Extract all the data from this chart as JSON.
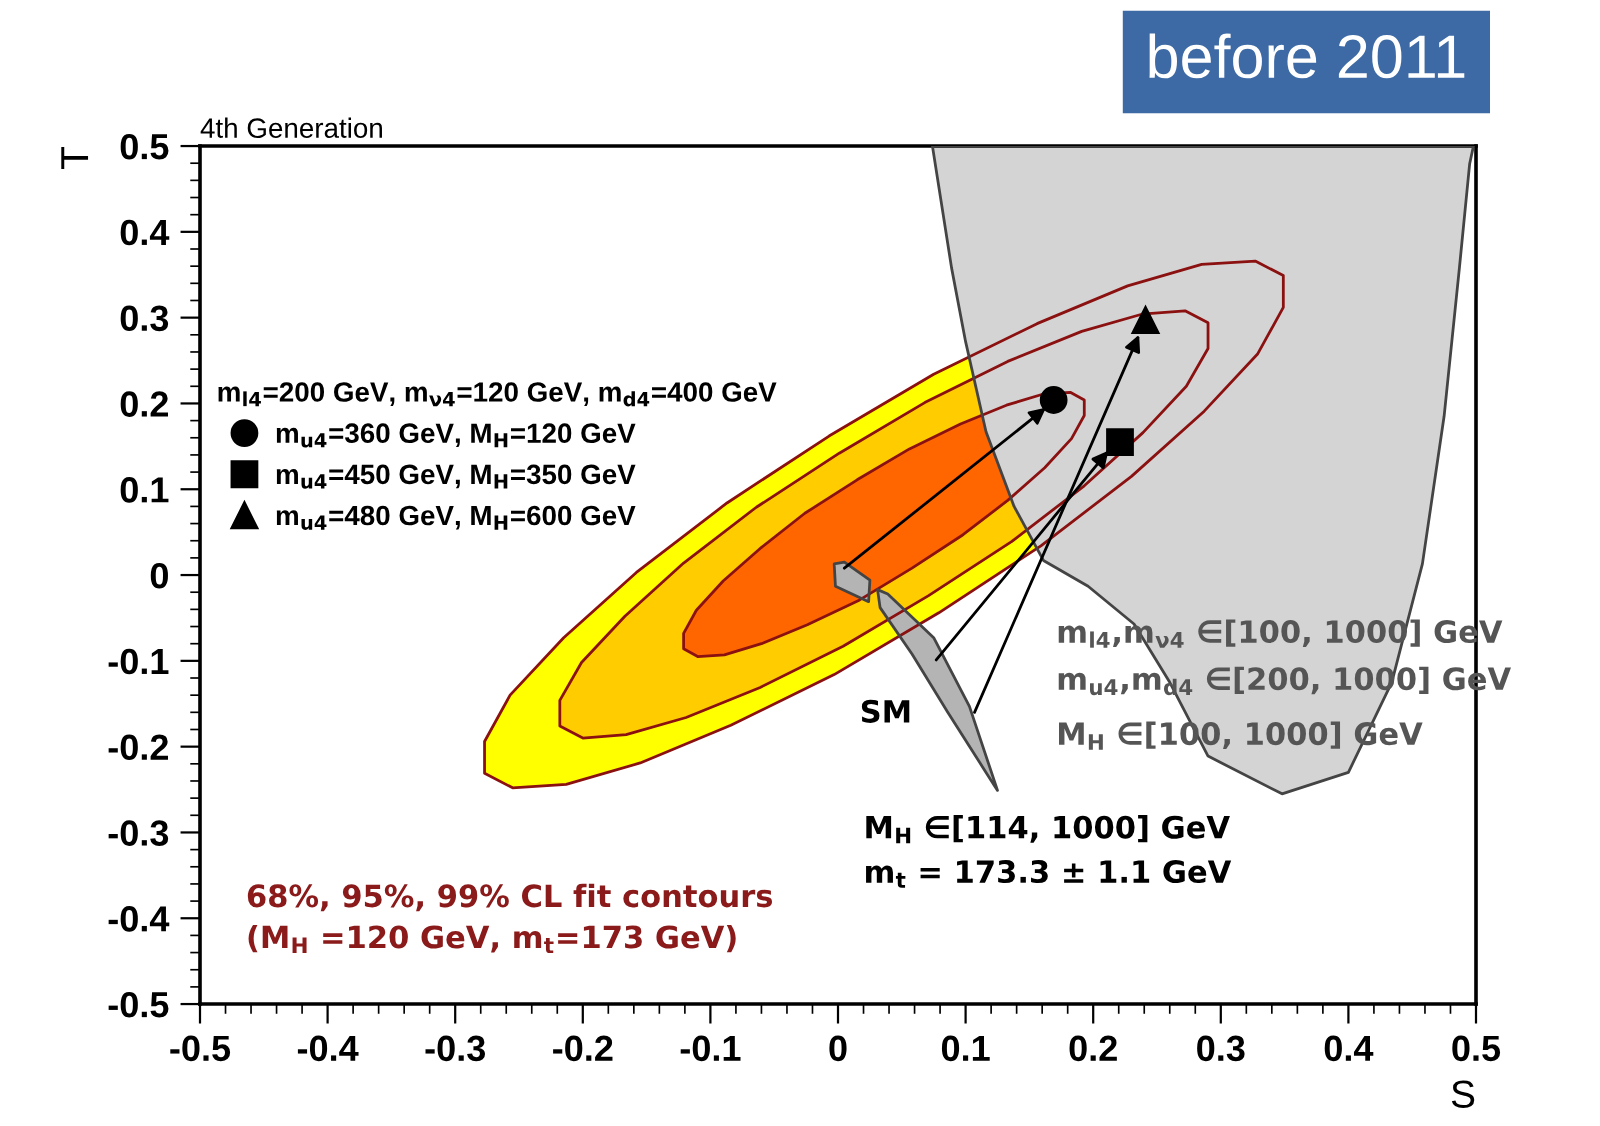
{
  "chart_data": {
    "type": "scatter",
    "title": "4th Generation",
    "xlabel": "S",
    "ylabel": "T",
    "legend_title": "m$_{l4}$=200 GeV, m$_{ν4}$=120 GeV, m$_{d4}$=400 GeV",
    "xlim": [
      -0.5,
      0.5
    ],
    "ylim": [
      -0.5,
      0.5
    ],
    "xticks": [
      -0.5,
      -0.4,
      -0.3,
      -0.2,
      -0.1,
      0,
      0.1,
      0.2,
      0.3,
      0.4,
      0.5
    ],
    "yticks": [
      -0.5,
      -0.4,
      -0.3,
      -0.2,
      -0.1,
      0,
      0.1,
      0.2,
      0.3,
      0.4,
      0.5
    ],
    "legend": "top left",
    "grid": false,
    "series": [
      {
        "type": "area",
        "color": "#ffff00",
        "x": [
          0.349,
          0.349,
          0.329,
          0.287,
          0.23,
          0.159,
          0.079,
          -0.003,
          -0.084,
          -0.155,
          -0.213,
          -0.255,
          -0.277,
          -0.277,
          -0.257,
          -0.215,
          -0.158,
          -0.087,
          -0.007,
          0.075,
          0.156,
          0.227,
          0.285,
          0.327
        ],
        "values": [
          0.349,
          0.312,
          0.258,
          0.191,
          0.115,
          0.034,
          -0.044,
          -0.116,
          -0.175,
          -0.219,
          -0.244,
          -0.248,
          -0.231,
          -0.194,
          -0.14,
          -0.073,
          0.003,
          0.084,
          0.162,
          0.234,
          0.293,
          0.337,
          0.362,
          0.366
        ]
      },
      {
        "type": "area",
        "color": "#ffcc00",
        "x": [
          0.29,
          0.29,
          0.273,
          0.239,
          0.193,
          0.136,
          0.071,
          0.004,
          -0.061,
          -0.119,
          -0.166,
          -0.2,
          -0.218,
          -0.218,
          -0.201,
          -0.167,
          -0.121,
          -0.064,
          0.001,
          0.068,
          0.133,
          0.191,
          0.238,
          0.272
        ],
        "values": [
          0.294,
          0.264,
          0.22,
          0.166,
          0.104,
          0.039,
          -0.024,
          -0.083,
          -0.131,
          -0.166,
          -0.186,
          -0.19,
          -0.176,
          -0.146,
          -0.102,
          -0.048,
          0.014,
          0.079,
          0.142,
          0.201,
          0.249,
          0.284,
          0.304,
          0.308
        ]
      },
      {
        "type": "area",
        "color": "#ff6600",
        "x": [
          0.193,
          0.193,
          0.183,
          0.162,
          0.133,
          0.098,
          0.058,
          0.017,
          -0.024,
          -0.06,
          -0.089,
          -0.11,
          -0.121,
          -0.121,
          -0.111,
          -0.09,
          -0.061,
          -0.026,
          0.015,
          0.056,
          0.096,
          0.132,
          0.161,
          0.182
        ],
        "values": [
          0.204,
          0.186,
          0.159,
          0.125,
          0.087,
          0.047,
          0.008,
          -0.029,
          -0.058,
          -0.08,
          -0.093,
          -0.095,
          -0.086,
          -0.068,
          -0.041,
          -0.007,
          0.031,
          0.072,
          0.111,
          0.147,
          0.176,
          0.198,
          0.211,
          0.213
        ]
      },
      {
        "type": "area",
        "color": "#d4d4d4",
        "x": [
          0.074,
          0.089,
          0.1,
          0.116,
          0.138,
          0.161,
          0.196,
          0.232,
          0.26,
          0.29,
          0.348,
          0.4,
          0.434,
          0.458,
          0.475,
          0.487,
          0.495,
          0.498
        ],
        "values": [
          0.5,
          0.358,
          0.272,
          0.167,
          0.08,
          0.017,
          -0.013,
          -0.057,
          -0.125,
          -0.211,
          -0.255,
          -0.23,
          -0.125,
          0.013,
          0.185,
          0.358,
          0.479,
          0.5
        ]
      },
      {
        "type": "area",
        "color": "#b4b4b4",
        "x": [
          -0.003,
          0.005,
          0.025,
          0.024,
          -0.002
        ],
        "values": [
          0.013,
          0.015,
          -0.006,
          -0.031,
          -0.013
        ]
      },
      {
        "type": "area",
        "color": "#b4b4b4",
        "x": [
          0.031,
          0.039,
          0.075,
          0.103,
          0.125,
          0.116,
          0.086,
          0.058,
          0.033
        ],
        "values": [
          -0.017,
          -0.022,
          -0.073,
          -0.153,
          -0.251,
          -0.23,
          -0.16,
          -0.092,
          -0.038
        ]
      },
      {
        "type": "line",
        "color": "#000000",
        "x": [
          0.005,
          0.163
        ],
        "values": [
          0.008,
          0.195
        ]
      },
      {
        "type": "line",
        "color": "#000000",
        "x": [
          0.077,
          0.212
        ],
        "values": [
          -0.099,
          0.145
        ]
      },
      {
        "type": "line",
        "color": "#000000",
        "x": [
          0.107,
          0.236
        ],
        "values": [
          -0.16,
          0.28
        ]
      },
      {
        "type": "scatter",
        "name": "m$_{u4}$=360 GeV, M$_{H}$=120 GeV",
        "marker": "circle",
        "color": "#000000",
        "x": [
          0.169
        ],
        "values": [
          0.204
        ]
      },
      {
        "type": "scatter",
        "name": "m$_{u4}$=450 GeV, M$_{H}$=350 GeV",
        "marker": "square",
        "color": "#000000",
        "x": [
          0.221
        ],
        "values": [
          0.155
        ]
      },
      {
        "type": "scatter",
        "name": "m$_{u4}$=480 GeV, M$_{H}$=600 GeV",
        "marker": "triangle",
        "color": "#000000",
        "x": [
          0.241
        ],
        "values": [
          0.297
        ]
      }
    ],
    "annotations": [
      "m$_{l4}$,m$_{ν4}$ ∈[100, 1000] GeV",
      "m$_{u4}$,m$_{d4}$ ∈[200, 1000] GeV",
      "M$_{H}$ ∈[100, 1000] GeV",
      "SM",
      "M$_{H}$ ∈[114, 1000] GeV",
      "m$_{t}$ = 173.3 ± 1.1 GeV",
      "68%, 95%, 99% CL fit contours",
      "(M$_{H}$ =120 GeV, m$_{t}$=173 GeV)",
      "before 2011"
    ]
  }
}
